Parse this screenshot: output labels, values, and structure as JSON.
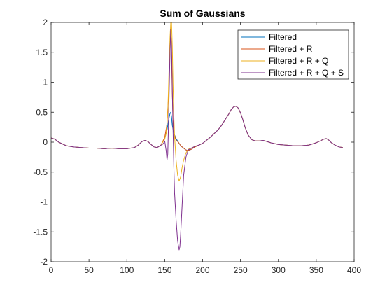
{
  "chart_data": {
    "type": "line",
    "title": "Sum of Gaussians",
    "xlabel": "",
    "ylabel": "",
    "xlim": [
      0,
      400
    ],
    "ylim": [
      -2,
      2
    ],
    "xticks": [
      0,
      50,
      100,
      150,
      200,
      250,
      300,
      350,
      400
    ],
    "yticks": [
      -2,
      -1.5,
      -1,
      -0.5,
      0,
      0.5,
      1,
      1.5,
      2
    ],
    "xtick_labels": [
      "0",
      "50",
      "100",
      "150",
      "200",
      "250",
      "300",
      "350",
      "400"
    ],
    "ytick_labels": [
      "-2",
      "-1.5",
      "-1",
      "-0.5",
      "0",
      "0.5",
      "1",
      "1.5",
      "2"
    ],
    "grid": false,
    "legend_position": "top-right",
    "series": [
      {
        "name": "Filtered",
        "color": "#0072BD",
        "x": [
          0,
          5,
          10,
          20,
          30,
          40,
          50,
          60,
          70,
          80,
          90,
          100,
          110,
          115,
          120,
          124,
          128,
          132,
          136,
          140,
          145,
          150,
          153,
          155,
          157,
          158,
          159,
          160,
          162,
          165,
          168,
          170,
          172,
          175,
          178,
          181,
          185,
          190,
          195,
          200,
          205,
          210,
          215,
          220,
          225,
          230,
          235,
          238,
          241,
          244,
          247,
          250,
          253,
          256,
          260,
          265,
          270,
          275,
          280,
          285,
          290,
          300,
          310,
          320,
          330,
          340,
          350,
          355,
          360,
          363,
          366,
          370,
          375,
          380,
          385
        ],
        "y": [
          0.07,
          0.05,
          0.0,
          -0.06,
          -0.08,
          -0.09,
          -0.1,
          -0.1,
          -0.11,
          -0.1,
          -0.11,
          -0.11,
          -0.09,
          -0.05,
          0.01,
          0.03,
          0.01,
          -0.04,
          -0.08,
          -0.09,
          -0.05,
          0.06,
          0.2,
          0.36,
          0.48,
          0.5,
          0.42,
          0.28,
          0.15,
          0.06,
          0.0,
          -0.04,
          -0.07,
          -0.1,
          -0.13,
          -0.14,
          -0.12,
          -0.08,
          -0.05,
          -0.02,
          0.03,
          0.08,
          0.14,
          0.2,
          0.28,
          0.38,
          0.48,
          0.55,
          0.59,
          0.6,
          0.57,
          0.49,
          0.38,
          0.25,
          0.12,
          0.04,
          0.02,
          0.02,
          0.03,
          0.01,
          -0.01,
          -0.04,
          -0.05,
          -0.06,
          -0.06,
          -0.05,
          -0.01,
          0.02,
          0.05,
          0.06,
          0.04,
          -0.01,
          -0.05,
          -0.08,
          -0.09
        ]
      },
      {
        "name": "Filtered + R",
        "color": "#D95319",
        "x": [
          0,
          5,
          10,
          20,
          30,
          40,
          50,
          60,
          70,
          80,
          90,
          100,
          110,
          115,
          120,
          124,
          128,
          132,
          136,
          140,
          145,
          150,
          153,
          155,
          156,
          157,
          157.5,
          158,
          158.5,
          159,
          160,
          161,
          162,
          164,
          166,
          168,
          170,
          172,
          175,
          178,
          181,
          185,
          190,
          195,
          200,
          205,
          210,
          215,
          220,
          225,
          230,
          235,
          238,
          241,
          244,
          247,
          250,
          253,
          256,
          260,
          265,
          270,
          275,
          280,
          285,
          290,
          300,
          310,
          320,
          330,
          340,
          350,
          355,
          360,
          363,
          366,
          370,
          375,
          380,
          385
        ],
        "y": [
          0.07,
          0.05,
          0.0,
          -0.06,
          -0.08,
          -0.09,
          -0.1,
          -0.1,
          -0.11,
          -0.1,
          -0.11,
          -0.11,
          -0.09,
          -0.05,
          0.01,
          0.03,
          0.01,
          -0.04,
          -0.08,
          -0.09,
          -0.05,
          0.08,
          0.3,
          0.75,
          1.1,
          1.55,
          1.78,
          1.9,
          1.75,
          1.45,
          0.8,
          0.38,
          0.18,
          0.06,
          0.02,
          0.0,
          -0.04,
          -0.07,
          -0.1,
          -0.13,
          -0.14,
          -0.12,
          -0.08,
          -0.05,
          -0.02,
          0.03,
          0.08,
          0.14,
          0.2,
          0.28,
          0.38,
          0.48,
          0.55,
          0.59,
          0.6,
          0.57,
          0.49,
          0.38,
          0.25,
          0.12,
          0.04,
          0.02,
          0.02,
          0.03,
          0.01,
          -0.01,
          -0.04,
          -0.05,
          -0.06,
          -0.06,
          -0.05,
          -0.01,
          0.02,
          0.05,
          0.06,
          0.04,
          -0.01,
          -0.05,
          -0.08,
          -0.09
        ]
      },
      {
        "name": "Filtered + R + Q",
        "color": "#EDB120",
        "x": [
          0,
          5,
          10,
          20,
          30,
          40,
          50,
          60,
          70,
          80,
          90,
          100,
          110,
          115,
          120,
          124,
          128,
          132,
          136,
          140,
          145,
          150,
          152,
          154,
          155,
          156,
          157,
          158,
          159,
          160,
          161,
          162,
          163,
          165,
          167,
          169,
          171,
          173,
          175,
          178,
          181,
          185,
          190,
          195,
          200,
          205,
          210,
          215,
          220,
          225,
          230,
          235,
          238,
          241,
          244,
          247,
          250,
          253,
          256,
          260,
          265,
          270,
          275,
          280,
          285,
          290,
          300,
          310,
          320,
          330,
          340,
          350,
          355,
          360,
          363,
          366,
          370,
          375,
          380,
          385
        ],
        "y": [
          0.07,
          0.05,
          0.0,
          -0.06,
          -0.08,
          -0.09,
          -0.1,
          -0.1,
          -0.11,
          -0.1,
          -0.11,
          -0.11,
          -0.09,
          -0.05,
          0.01,
          0.03,
          0.01,
          -0.04,
          -0.08,
          -0.09,
          -0.05,
          0.05,
          0.15,
          0.5,
          0.9,
          1.35,
          1.75,
          2.0,
          2.0,
          1.6,
          0.95,
          0.45,
          0.1,
          -0.3,
          -0.55,
          -0.65,
          -0.58,
          -0.42,
          -0.3,
          -0.18,
          -0.12,
          -0.1,
          -0.07,
          -0.05,
          -0.02,
          0.03,
          0.08,
          0.14,
          0.2,
          0.28,
          0.38,
          0.48,
          0.55,
          0.59,
          0.6,
          0.57,
          0.49,
          0.38,
          0.25,
          0.12,
          0.04,
          0.02,
          0.02,
          0.03,
          0.01,
          -0.01,
          -0.04,
          -0.05,
          -0.06,
          -0.06,
          -0.05,
          -0.01,
          0.02,
          0.05,
          0.06,
          0.04,
          -0.01,
          -0.05,
          -0.08,
          -0.09
        ]
      },
      {
        "name": "Filtered + R + Q + S",
        "color": "#7E2F8E",
        "x": [
          0,
          5,
          10,
          20,
          30,
          40,
          50,
          60,
          70,
          80,
          90,
          100,
          110,
          115,
          120,
          124,
          128,
          132,
          136,
          140,
          145,
          148,
          150,
          152,
          153,
          154,
          155,
          156,
          157,
          158,
          159,
          160,
          161,
          162,
          163,
          165,
          167,
          169,
          170,
          171,
          173,
          175,
          178,
          181,
          185,
          190,
          195,
          200,
          205,
          210,
          215,
          220,
          225,
          230,
          235,
          238,
          241,
          244,
          247,
          250,
          253,
          256,
          260,
          265,
          270,
          275,
          280,
          285,
          290,
          300,
          310,
          320,
          330,
          340,
          350,
          355,
          360,
          363,
          366,
          370,
          375,
          380,
          385
        ],
        "y": [
          0.07,
          0.05,
          0.0,
          -0.06,
          -0.08,
          -0.09,
          -0.1,
          -0.1,
          -0.11,
          -0.1,
          -0.11,
          -0.11,
          -0.09,
          -0.05,
          0.01,
          0.03,
          0.01,
          -0.04,
          -0.08,
          -0.09,
          -0.05,
          -0.03,
          0.02,
          -0.15,
          -0.3,
          -0.2,
          0.3,
          0.9,
          1.5,
          1.88,
          1.6,
          0.9,
          0.2,
          -0.4,
          -0.85,
          -1.3,
          -1.65,
          -1.8,
          -1.75,
          -1.55,
          -1.05,
          -0.55,
          -0.25,
          -0.13,
          -0.1,
          -0.07,
          -0.05,
          -0.02,
          0.03,
          0.08,
          0.14,
          0.2,
          0.28,
          0.38,
          0.48,
          0.55,
          0.59,
          0.6,
          0.57,
          0.49,
          0.38,
          0.25,
          0.12,
          0.04,
          0.02,
          0.02,
          0.03,
          0.01,
          -0.01,
          -0.04,
          -0.05,
          -0.06,
          -0.06,
          -0.05,
          -0.01,
          0.02,
          0.05,
          0.06,
          0.04,
          -0.01,
          -0.05,
          -0.08,
          -0.09
        ]
      }
    ]
  }
}
